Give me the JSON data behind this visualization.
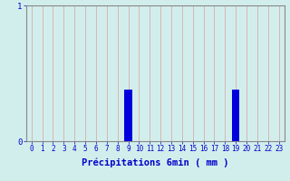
{
  "title": "",
  "xlabel": "Précipitations 6min ( mm )",
  "ylabel": "",
  "xlim": [
    -0.5,
    23.5
  ],
  "ylim": [
    0,
    1.0
  ],
  "yticks": [
    0,
    1
  ],
  "xtick_labels": [
    "0",
    "1",
    "2",
    "3",
    "4",
    "5",
    "6",
    "7",
    "8",
    "9",
    "10",
    "11",
    "12",
    "13",
    "14",
    "15",
    "16",
    "17",
    "18",
    "19",
    "20",
    "21",
    "22",
    "23"
  ],
  "bar_positions": [
    9,
    19
  ],
  "bar_values": [
    0.38,
    0.38
  ],
  "bar_color": "#0000dd",
  "bar_width": 0.7,
  "background_color": "#d2eeec",
  "grid_color": "#d9a0a0",
  "axis_label_color": "#0000cc",
  "tick_color": "#0000cc",
  "spine_color": "#888888",
  "font_size": 5.5,
  "xlabel_fontsize": 7.5
}
